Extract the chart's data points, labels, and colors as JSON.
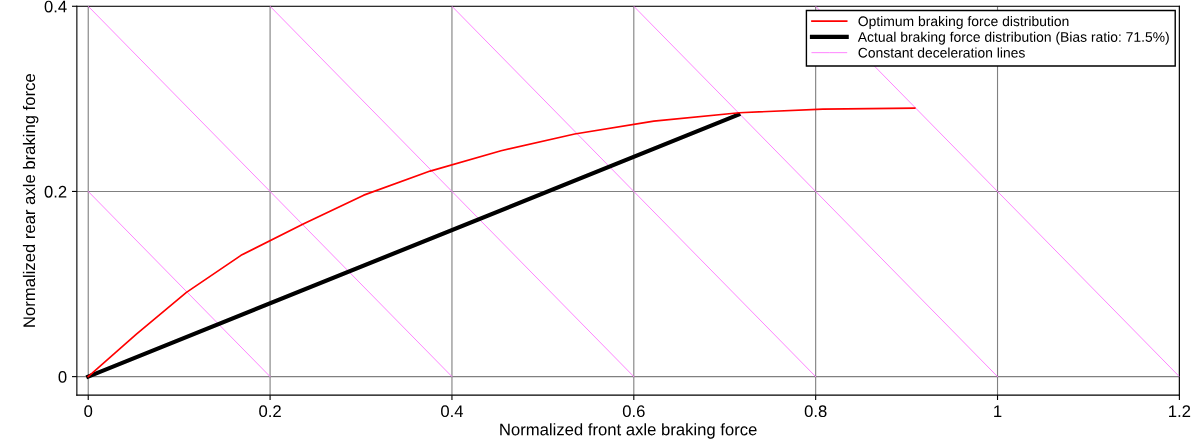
{
  "chart_data": {
    "type": "line",
    "xlabel": "Normalized front axle braking force",
    "ylabel": "Normalized rear axle braking force",
    "xlim": [
      -0.0125,
      1.2
    ],
    "ylim": [
      -0.02,
      0.4
    ],
    "xticks": [
      0,
      {
        "value": 0.2,
        "label": "0.2"
      },
      {
        "value": 0.4,
        "label": "0.4"
      },
      {
        "value": 0.6,
        "label": "0.6"
      },
      {
        "value": 0.8,
        "label": "0.8"
      },
      1,
      {
        "value": 1.2,
        "label": "1.2"
      }
    ],
    "yticks": [
      0,
      {
        "value": 0.2,
        "label": "0.2"
      },
      {
        "value": 0.4,
        "label": "0.4"
      }
    ],
    "grid": true,
    "legend": "top right",
    "marker": "none",
    "line_style": "solid",
    "series": [
      {
        "name": "Optimum braking force distribution",
        "color": "#ff0000",
        "x": [
          0,
          0.053,
          0.108,
          0.168,
          0.237,
          0.303,
          0.376,
          0.454,
          0.535,
          0.622,
          0.716,
          0.808,
          0.909
        ],
        "values": [
          0,
          0.046,
          0.091,
          0.131,
          0.165,
          0.196,
          0.222,
          0.244,
          0.262,
          0.276,
          0.285,
          0.289,
          0.29
        ]
      },
      {
        "name": "Actual braking force distribution (Bias ratio: 71.5%)",
        "color": "#000000",
        "x": [
          0,
          0.715
        ],
        "values": [
          0,
          0.283
        ]
      },
      {
        "name": "Constant deceleration lines",
        "color": "#ff80ff",
        "x": [
          0,
          0.2,
          null,
          0,
          0.4,
          null,
          0.2,
          0.6,
          null,
          0.4,
          0.8,
          null,
          0.6,
          1.0,
          null,
          0.8,
          1.2
        ],
        "values": [
          0.2,
          0,
          null,
          0.4,
          0,
          null,
          0.4,
          0,
          null,
          0.4,
          0,
          null,
          0.4,
          0,
          null,
          0.4,
          0
        ]
      }
    ]
  }
}
